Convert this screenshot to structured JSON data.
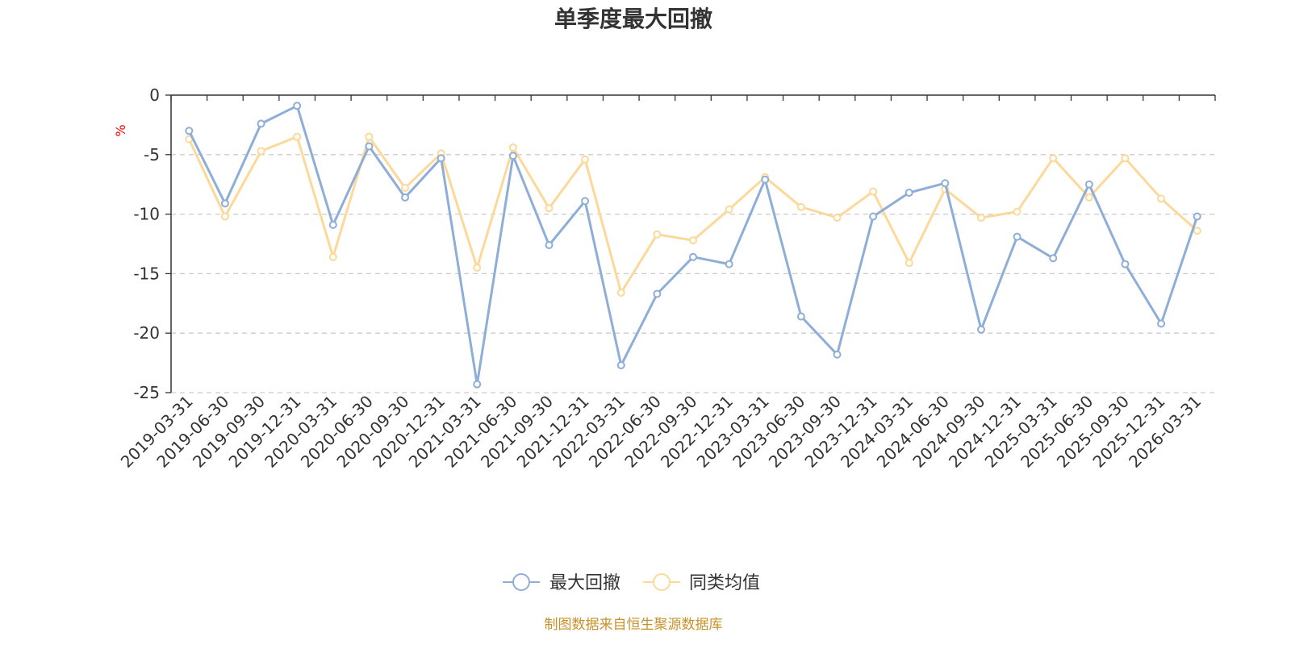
{
  "chart_data": {
    "type": "line",
    "title": "单季度最大回撤",
    "ylabel": "%",
    "ylim": [
      -25,
      0
    ],
    "yticks": [
      0,
      -5,
      -10,
      -15,
      -20,
      -25
    ],
    "grid": true,
    "legend_position": "bottom",
    "categories": [
      "2019-03-31",
      "2019-06-30",
      "2019-09-30",
      "2019-12-31",
      "2020-03-31",
      "2020-06-30",
      "2020-09-30",
      "2020-12-31",
      "2021-03-31",
      "2021-06-30",
      "2021-09-30",
      "2021-12-31",
      "2022-03-31",
      "2022-06-30",
      "2022-09-30",
      "2022-12-31",
      "2023-03-31",
      "2023-06-30",
      "2023-09-30",
      "2023-12-31",
      "2024-03-31",
      "2024-06-30",
      "2024-09-30",
      "2024-12-31",
      "2025-03-31",
      "2025-06-30",
      "2025-09-30",
      "2025-12-31",
      "2026-03-31"
    ],
    "series": [
      {
        "name": "最大回撤",
        "color": "#8eaed8",
        "values": [
          -3.0,
          -9.1,
          -2.4,
          -0.9,
          -10.9,
          -4.3,
          -8.6,
          -5.3,
          -24.3,
          -5.1,
          -12.6,
          -8.9,
          -22.7,
          -16.7,
          -13.6,
          -14.2,
          -7.1,
          -18.6,
          -21.8,
          -10.2,
          -8.2,
          -7.4,
          -19.7,
          -11.9,
          -13.7,
          -7.5,
          -14.2,
          -19.2,
          -10.2
        ]
      },
      {
        "name": "同类均值",
        "color": "#fcd99a",
        "values": [
          -3.7,
          -10.2,
          -4.7,
          -3.5,
          -13.6,
          -3.5,
          -7.8,
          -4.9,
          -14.5,
          -4.4,
          -9.5,
          -5.4,
          -16.6,
          -11.7,
          -12.2,
          -9.6,
          -6.9,
          -9.4,
          -10.3,
          -8.1,
          -14.1,
          -7.9,
          -10.3,
          -9.8,
          -5.3,
          -8.6,
          -5.3,
          -8.7,
          -11.4
        ]
      }
    ],
    "source": "制图数据来自恒生聚源数据库"
  }
}
